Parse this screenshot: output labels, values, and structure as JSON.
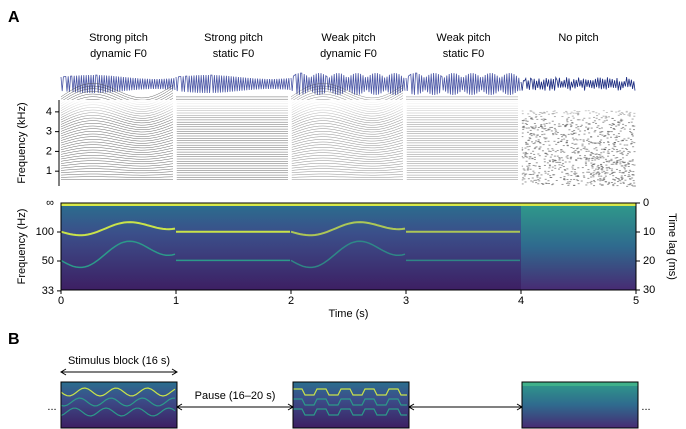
{
  "panel_labels": {
    "a": "A",
    "b": "B"
  },
  "conditions": [
    {
      "line1": "Strong pitch",
      "line2": "dynamic F0"
    },
    {
      "line1": "Strong pitch",
      "line2": "static F0"
    },
    {
      "line1": "Weak pitch",
      "line2": "dynamic F0"
    },
    {
      "line1": "Weak pitch",
      "line2": "static F0"
    },
    {
      "line1": "No pitch"
    }
  ],
  "chart_data": [
    {
      "type": "spectrogram",
      "ylabel": "Frequency (kHz)",
      "xlim": [
        0,
        5
      ],
      "ylim": [
        0.25,
        4.6
      ],
      "yticks": [
        1,
        2,
        3,
        4
      ]
    },
    {
      "type": "autocorrelogram",
      "ylabel": "Frequency (Hz)",
      "y2label": "Time lag (ms)",
      "xlabel": "Time (s)",
      "xlim": [
        0,
        5
      ],
      "xticks": [
        0,
        1,
        2,
        3,
        4,
        5
      ],
      "y_scale": "reciprocal",
      "yticks": [
        100,
        50,
        33
      ],
      "y_top_label": "∞",
      "y2lim": [
        0,
        30
      ],
      "y2ticks": [
        0,
        10,
        20,
        30
      ],
      "y2_inverted": true
    }
  ],
  "panel_b": {
    "block_label": "Stimulus block (16 s)",
    "pause_label": "Pause (16–20 s)",
    "ellipsis_left": "...",
    "ellipsis_right": "..."
  }
}
